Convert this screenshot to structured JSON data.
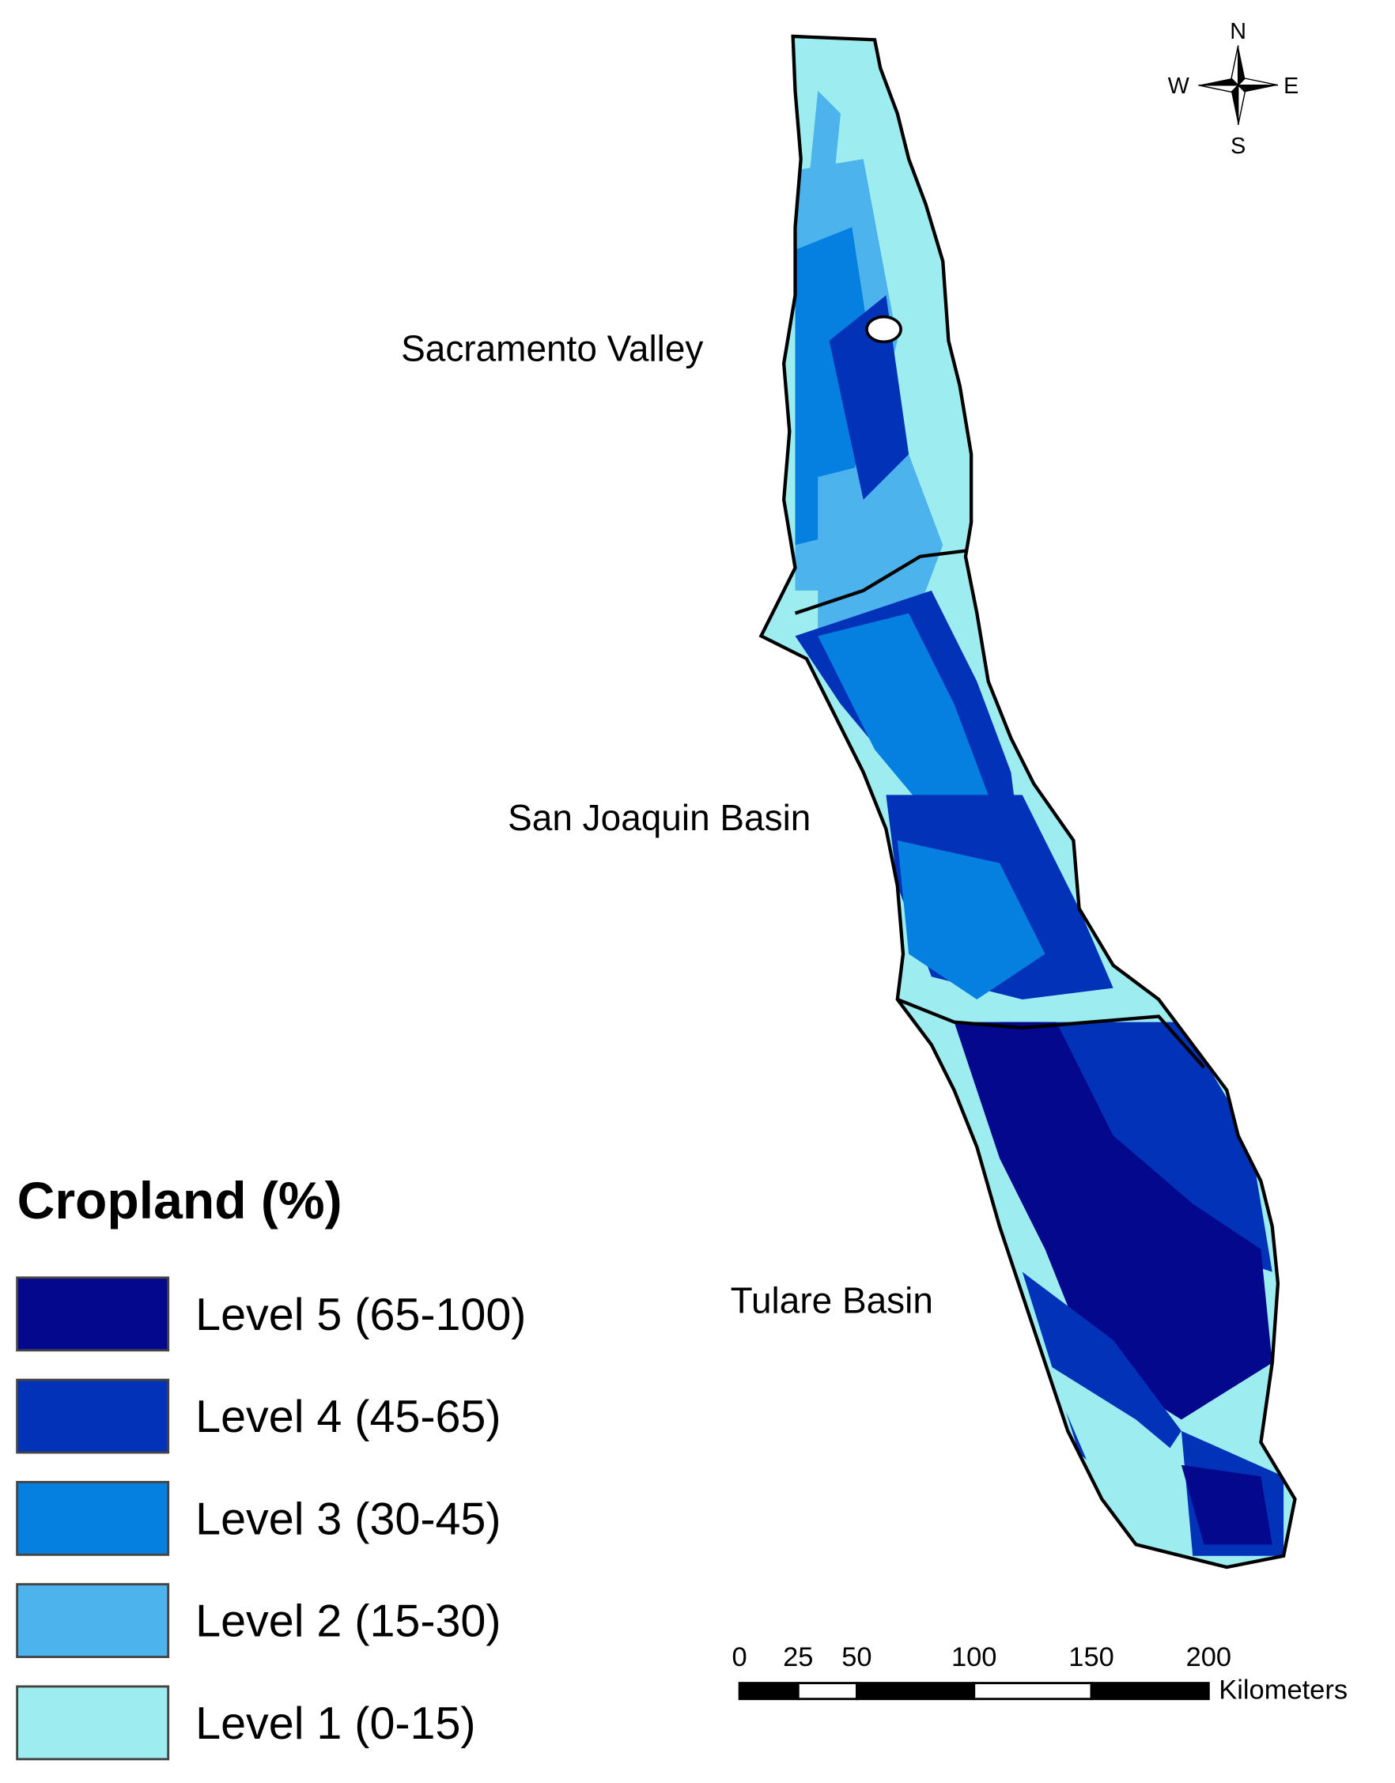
{
  "title": "Cropland (%)",
  "legend": [
    {
      "label": "Level 5 (65-100)",
      "color": "#03088c"
    },
    {
      "label": "Level 4 (45-65)",
      "color": "#0232b8"
    },
    {
      "label": "Level 3 (30-45)",
      "color": "#0580e0"
    },
    {
      "label": "Level 2 (15-30)",
      "color": "#4db3ec"
    },
    {
      "label": "Level 1 (0-15)",
      "color": "#9cecf0"
    }
  ],
  "regions": [
    "Sacramento Valley",
    "San Joaquin Basin",
    "Tulare Basin"
  ],
  "compass": {
    "north": "N",
    "south": "S",
    "east": "E",
    "west": "W"
  },
  "scale_bar": {
    "ticks": [
      0,
      25,
      50,
      100,
      150,
      200
    ],
    "unit": "Kilometers"
  }
}
